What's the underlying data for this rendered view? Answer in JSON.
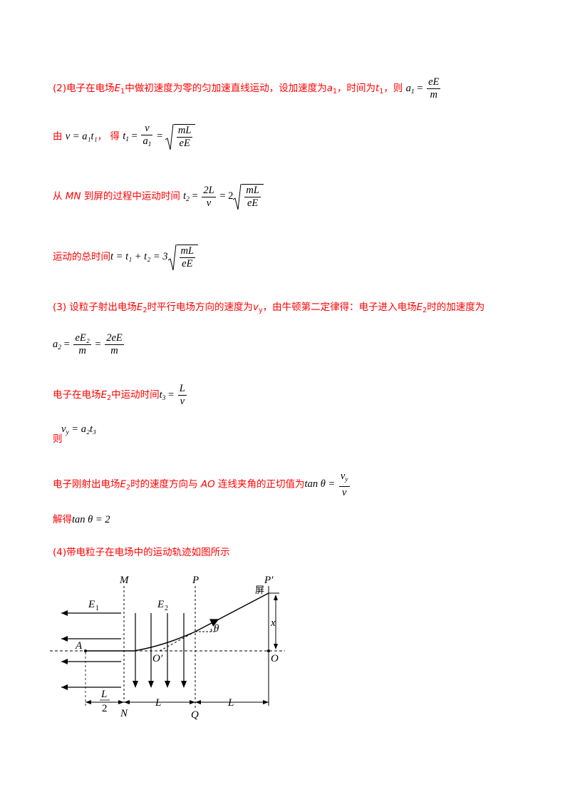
{
  "para2": {
    "text": "(2)电子在电场",
    "E": "E",
    "sub1": "1",
    "text2": "中做初速度为零的匀加速直线运动，设加速度为",
    "a": "a",
    "text3": "，时间为",
    "t": "t",
    "text4": "，则",
    "formula": {
      "lhs": "a",
      "lhs_sub": "1",
      "num": "eE",
      "den": "m"
    }
  },
  "line_v": {
    "prefix": "由",
    "formula1": "v = a₁t₁",
    "sep": "，  得",
    "t1": {
      "lhs": "t",
      "sub": "1",
      "num": "v",
      "den": "a",
      "den_sub": "1",
      "sqrt_num": "mL",
      "sqrt_den": "eE"
    }
  },
  "line_mn": {
    "prefix": "从",
    "MN": "MN",
    "text": "到屏的过程中运动时间",
    "t2": {
      "lhs": "t",
      "sub": "2",
      "num": "2L",
      "den": "v",
      "coef": "2",
      "sqrt_num": "mL",
      "sqrt_den": "eE"
    }
  },
  "line_total": {
    "text": "运动的总时间",
    "formula": {
      "lhs": "t = t₁ + t₂ = 3",
      "sqrt_num": "mL",
      "sqrt_den": "eE"
    }
  },
  "para3": {
    "text": "(3)  设粒子射出电场",
    "E": "E",
    "sub": "2",
    "text2": "时平行电场方向的速度为",
    "v": "v",
    "vsub": "y",
    "text3": "，由牛顿第二定律得：电子进入电场",
    "text4": "时的加速度为"
  },
  "line_a2": {
    "lhs": "a",
    "sub": "2",
    "num1": "eE₂",
    "den1": "m",
    "num2": "2eE",
    "den2": "m"
  },
  "line_t3": {
    "text": "电子在电场",
    "E": "E",
    "sub": "2",
    "text2": "中运动时间",
    "lhs": "t",
    "lsub": "3",
    "num": "L",
    "den": "v"
  },
  "line_vy": {
    "prefix": "则",
    "formula": "v",
    "fsub": "y",
    "rhs": "= a₂t₃"
  },
  "line_tan": {
    "text": "电子刚射出电场",
    "E": "E",
    "sub": "2",
    "text2": "时的速度方向与",
    "AO": "AO",
    "text3": "连线夹角的正切值为",
    "lhs": "tan θ =",
    "num": "v",
    "nsub": "y",
    "den": "v"
  },
  "line_solve": {
    "text": "解得",
    "formula": "tan θ = 2"
  },
  "para4": {
    "text": "(4)带电粒子在电场中的运动轨迹如图所示"
  },
  "diagram": {
    "labels": {
      "M": "M",
      "P": "P",
      "Pp": "P′",
      "screen": "屏",
      "E1": "E",
      "E1sub": "1",
      "E2": "E",
      "E2sub": "2",
      "theta": "θ",
      "x": "x",
      "A": "A",
      "Op": "O′",
      "O": "O",
      "L": "L",
      "L2num": "L",
      "L2den": "2",
      "N": "N",
      "Q": "Q"
    }
  }
}
